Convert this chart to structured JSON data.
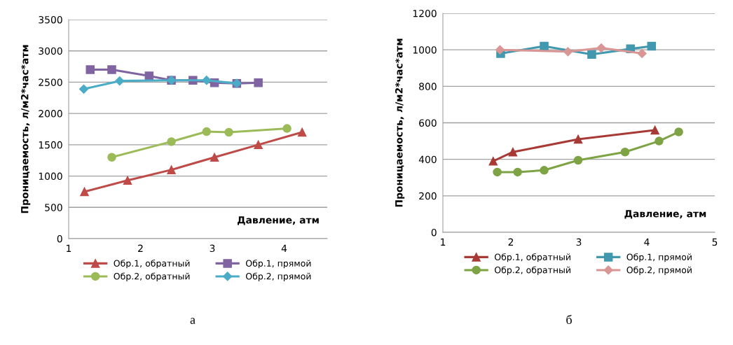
{
  "chart_data": [
    {
      "type": "line",
      "xlabel": "Давление, атм",
      "ylabel": "Проницаемость, л/м2*час*атм",
      "xlim": [
        1,
        4.6
      ],
      "xticks": [
        1,
        2,
        3,
        4
      ],
      "ylim": [
        0,
        3500
      ],
      "yticks": [
        0,
        500,
        1000,
        1500,
        2000,
        2500,
        3000,
        3500
      ],
      "grid": "y",
      "legend": "bottom",
      "annotations": [
        "а"
      ],
      "series": [
        {
          "name": "Обр.1, обратный",
          "color": "#be4b48",
          "marker": "triangle",
          "x": [
            1.22,
            1.82,
            2.43,
            3.03,
            3.64,
            4.25
          ],
          "values": [
            750,
            930,
            1100,
            1300,
            1500,
            1700
          ]
        },
        {
          "name": "Обр.2, обратный",
          "color": "#9bbb59",
          "marker": "circle",
          "x": [
            1.6,
            2.43,
            2.92,
            3.23,
            4.04
          ],
          "values": [
            1300,
            1550,
            1710,
            1700,
            1760
          ]
        },
        {
          "name": "Обр.1, прямой",
          "color": "#8064a2",
          "marker": "square",
          "x": [
            1.3,
            1.6,
            2.12,
            2.43,
            2.73,
            3.03,
            3.34,
            3.64
          ],
          "values": [
            2700,
            2700,
            2600,
            2530,
            2530,
            2490,
            2480,
            2490
          ]
        },
        {
          "name": "Обр.2, прямой",
          "color": "#4bacc6",
          "marker": "diamond",
          "x": [
            1.21,
            1.71,
            2.43,
            2.92,
            3.34
          ],
          "values": [
            2390,
            2520,
            2530,
            2530,
            2480
          ]
        }
      ]
    },
    {
      "type": "line",
      "xlabel": "Давление, атм",
      "ylabel": "Проницаемость, л/м2*час*атм",
      "xlim": [
        1,
        5
      ],
      "xticks": [
        1,
        2,
        3,
        4,
        5
      ],
      "ylim": [
        0,
        1200
      ],
      "yticks": [
        0,
        200,
        400,
        600,
        800,
        1000,
        1200
      ],
      "grid": "y",
      "legend": "bottom",
      "annotations": [
        "б"
      ],
      "series": [
        {
          "name": "Обр.1, обратный",
          "color": "#a83a36",
          "marker": "triangle",
          "x": [
            1.74,
            2.03,
            2.99,
            4.12
          ],
          "values": [
            390,
            440,
            510,
            560
          ]
        },
        {
          "name": "Обр.2, обратный",
          "color": "#7ea345",
          "marker": "circle",
          "x": [
            1.8,
            2.1,
            2.49,
            2.99,
            3.68,
            4.18,
            4.47
          ],
          "values": [
            330,
            330,
            340,
            395,
            440,
            500,
            550
          ]
        },
        {
          "name": "Обр.1, прямой",
          "color": "#4198af",
          "marker": "square",
          "x": [
            1.85,
            2.49,
            3.19,
            3.76,
            4.07
          ],
          "values": [
            980,
            1020,
            975,
            1005,
            1020
          ]
        },
        {
          "name": "Обр.2, прямой",
          "color": "#d99694",
          "marker": "diamond",
          "x": [
            1.84,
            2.84,
            3.33,
            3.93
          ],
          "values": [
            1000,
            990,
            1010,
            980
          ]
        }
      ]
    }
  ]
}
